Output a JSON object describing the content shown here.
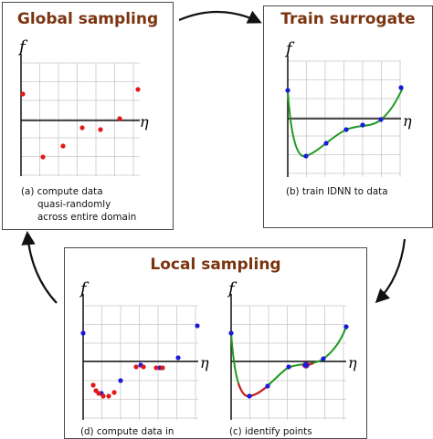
{
  "global": {
    "title": "Global sampling",
    "f_label": "f",
    "eta_label": "η",
    "caption": [
      "(a) compute data",
      "quasi-randomly",
      "across entire domain"
    ]
  },
  "train": {
    "title": "Train surrogate",
    "f_label": "f",
    "eta_label": "η",
    "caption": "(b) train IDNN to data"
  },
  "local": {
    "title": "Local sampling",
    "f_label_d": "f",
    "eta_label_d": "η",
    "f_label_c": "f",
    "eta_label_c": "η",
    "caption_d": "(d) compute data in",
    "caption_c": "(c) identify points"
  },
  "colors": {
    "title": "#7b3410",
    "red_point": "#e01818",
    "blue_point": "#1a1adb",
    "curve_green": "#1e9a1e",
    "curve_red": "#cc2020",
    "grid": "#c8c8c8",
    "box_border": "#4a4a4a"
  }
}
